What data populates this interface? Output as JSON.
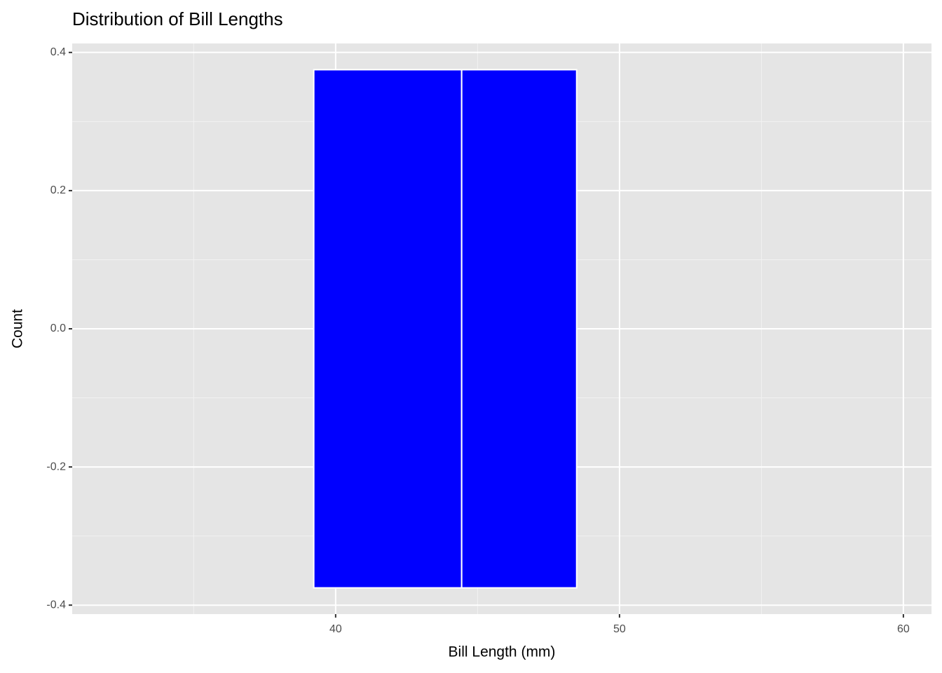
{
  "chart_data": {
    "type": "histogram",
    "title": "Distribution of Bill Lengths",
    "x_label": "Bill Length (mm)",
    "y_label": "Count",
    "bins": [
      39.23,
      44.44,
      48.49
    ],
    "ymin": [
      -0.375,
      -0.375
    ],
    "ymax": [
      0.375,
      0.375
    ],
    "color": "#0000ff",
    "edge_color": "#ffffff",
    "xlim": [
      30.72,
      60.99
    ],
    "ylim": [
      -0.413,
      0.413
    ],
    "xticks": [
      40,
      50,
      60
    ],
    "yticks": [
      0.4,
      0.2,
      {
        "value": 0,
        "label": "0.0"
      },
      -0.2,
      -0.4
    ],
    "x_minor_ticks": [
      35,
      45,
      55
    ],
    "y_minor_ticks": [
      0.3,
      0.1,
      -0.1,
      -0.3
    ],
    "grid": true
  }
}
